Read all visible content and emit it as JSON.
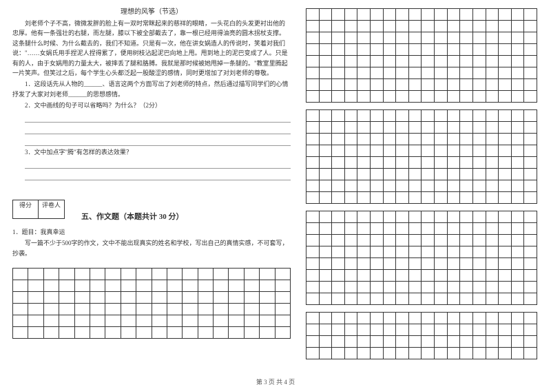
{
  "passage": {
    "title": "理想的风筝（节选）",
    "paragraphs": [
      "刘老师个子不高，微微发胖的脸上有一双时常眯起来的慈祥的眼睛，一头花白的头发更衬出他的忠厚。他有一条强壮的右腿，而左腿，膝以下被全部截去了，靠一根已经用得油亮的圆木拐杖支撑。这条腿什么时候、为什么截去的，我们不知道。只是有一次，他在讲女娲造人的传说时，笑着对我们说：\"……女娲氏用手捏泥人捏得累了，便用树枝沾起泥巴向地上甩。甩到地上的泥巴变成了人。只是有的人，由于女娲甩的力量太大，被摔丢了腿和胳膊。我就是那时候被她甩掉一条腿的。\"教室里腾起一片笑声。但笑过之后，每个学生心头都泛起一股酸涩的感情，同时更增加了对刘老师的尊敬。"
    ],
    "questions": [
      "1．这段话先从人物的______、语言这两个方面写出了刘老师的特点，然后通过描写同学们的心情抒发了大家对刘老师______的思想感情。",
      "2．文中画线的句子可以省略吗？为什么？（2分）",
      "3．文中加点字\"腾\"有怎样的表达效果？"
    ]
  },
  "scorebox": {
    "score": "得分",
    "grader": "评卷人"
  },
  "section5": {
    "heading": "五、作文题（本题共计 30 分）",
    "prompt_label": "1．题目：我真幸运",
    "prompt_body": "写一篇不少于500字的作文，文中不能出现真实的姓名和学校，写出自己的真情实感，不可套写，抄袭。"
  },
  "grids": {
    "left_rows": 6,
    "left_cols": 18,
    "right_blocks": [
      {
        "rows": 8,
        "cols": 18
      },
      {
        "rows": 8,
        "cols": 18
      },
      {
        "rows": 8,
        "cols": 18
      },
      {
        "rows": 4,
        "cols": 18
      }
    ],
    "border_color": "#333333"
  },
  "footer": "第 3 页 共 4 页"
}
